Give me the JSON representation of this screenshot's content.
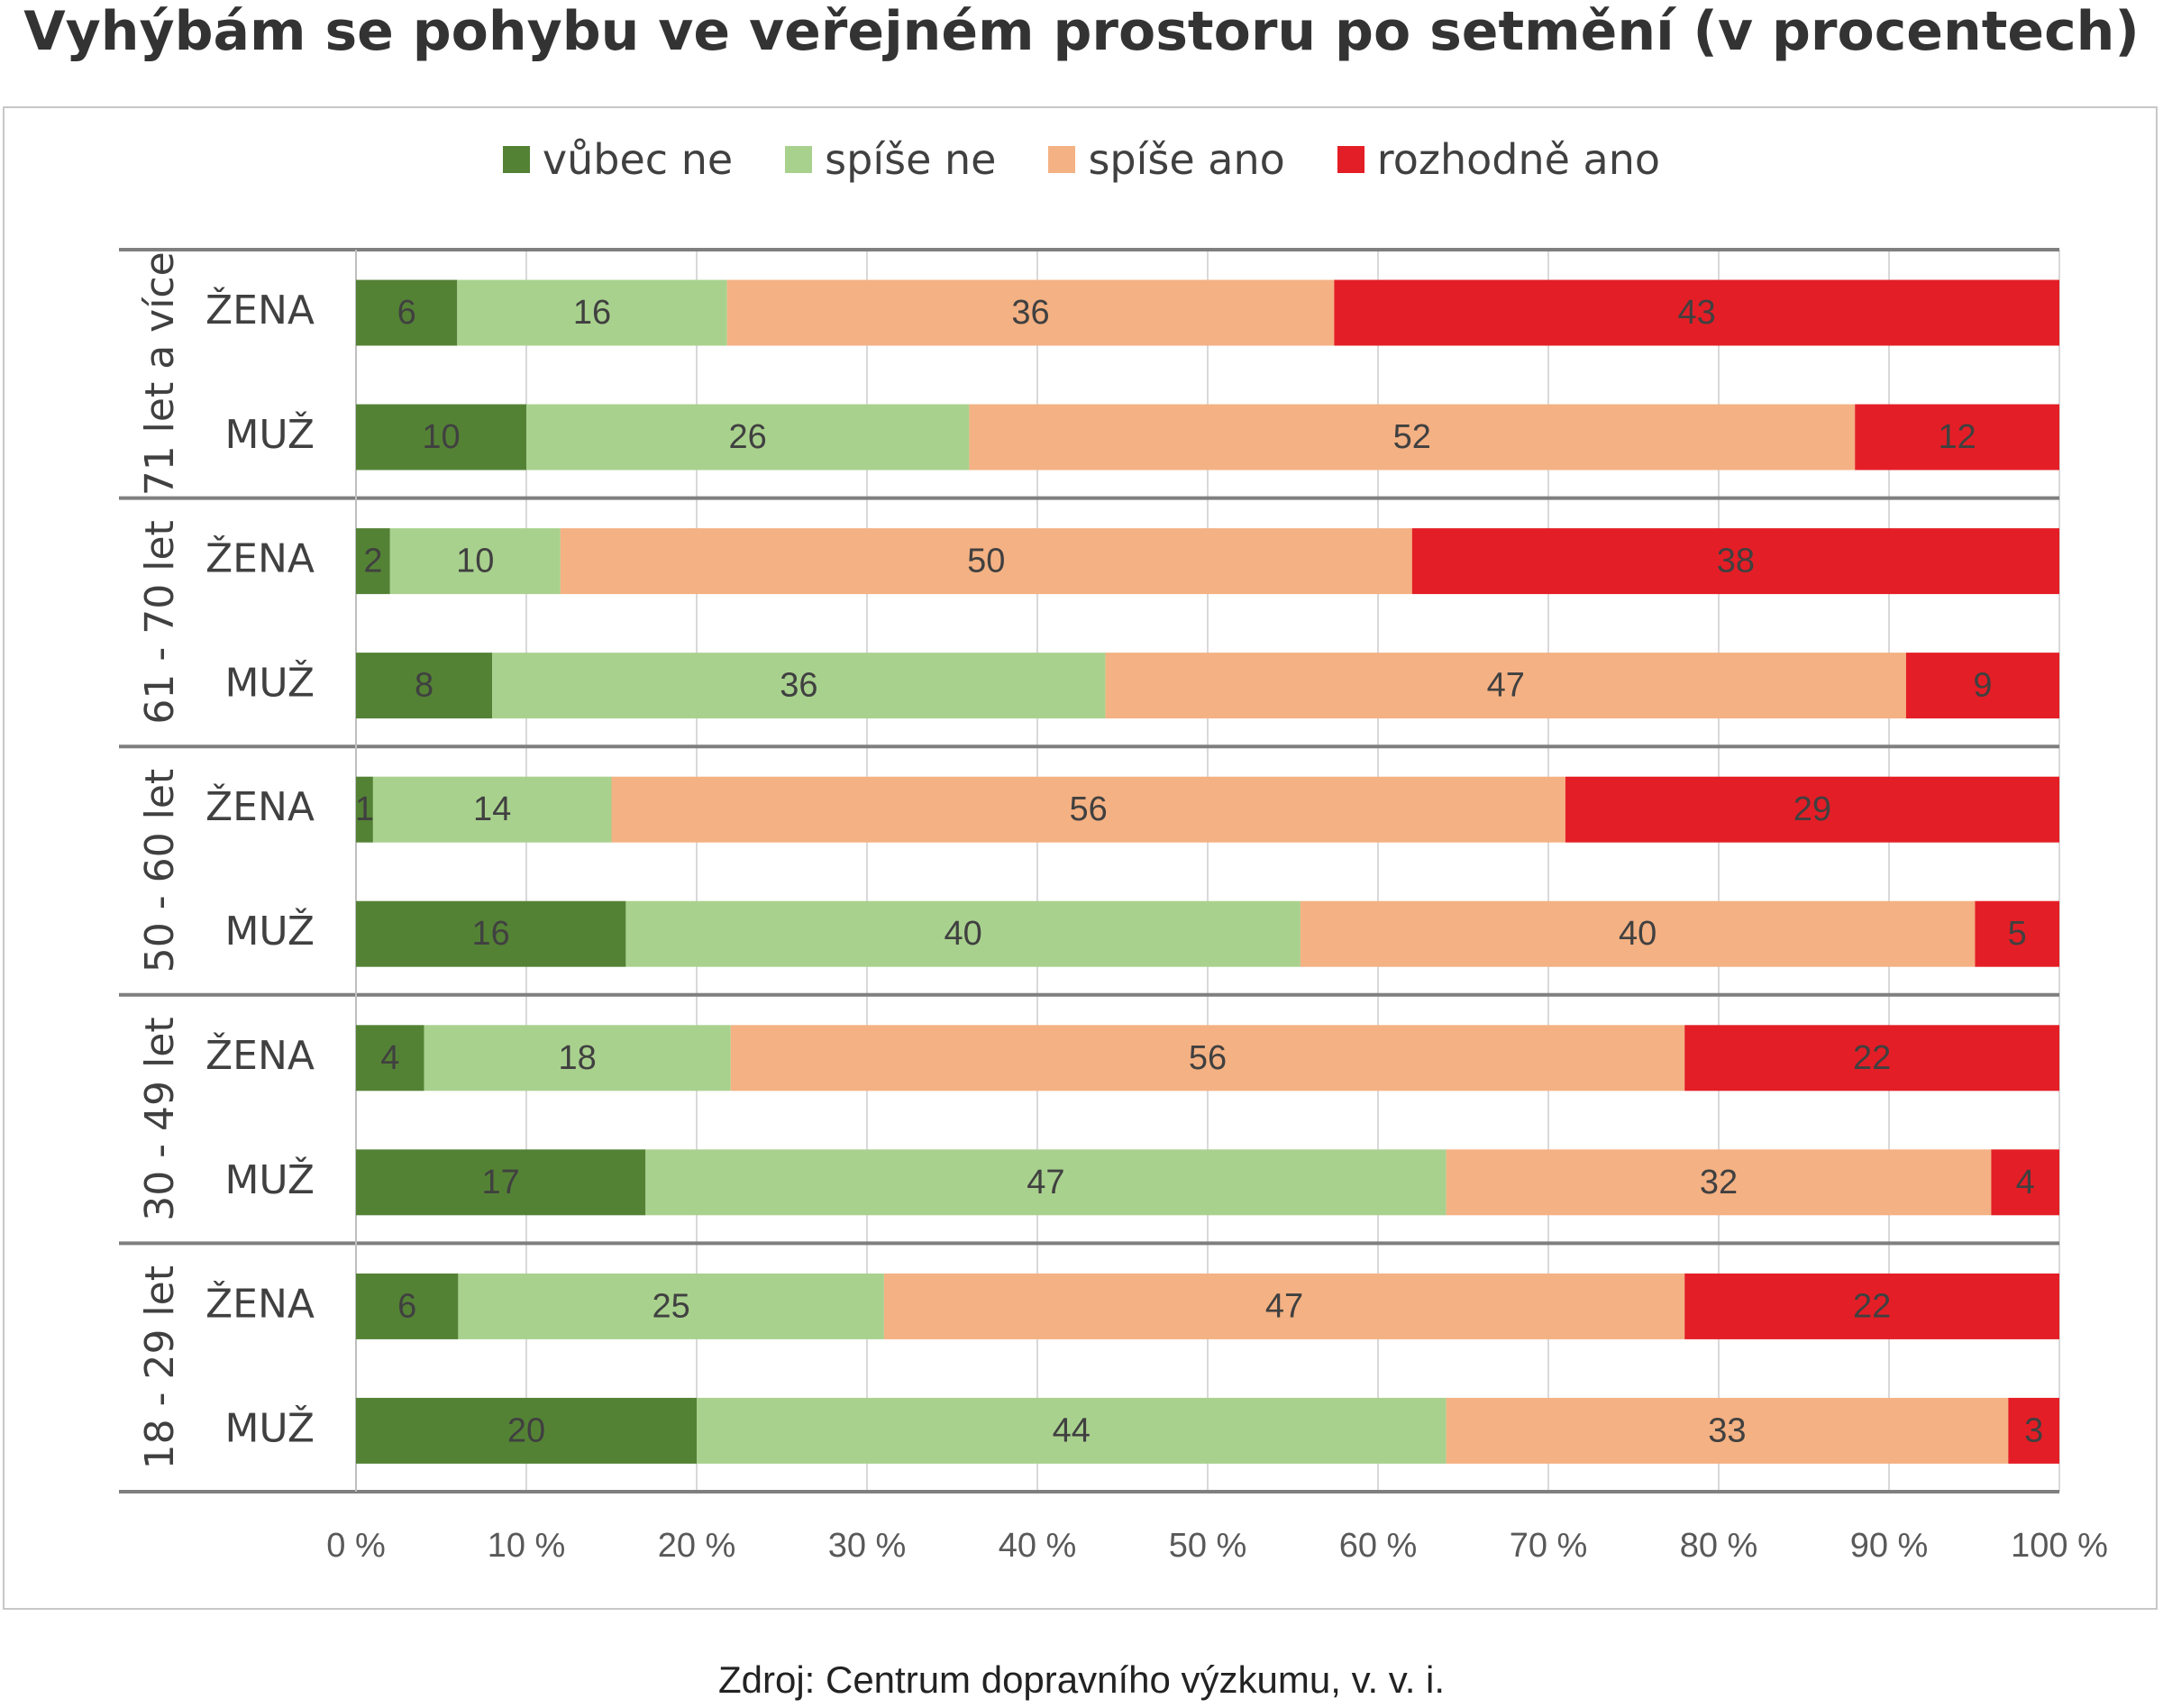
{
  "title": "Vyhýbám se pohybu ve veřejném prostoru po setmění (v procentech)",
  "source": "Zdroj: Centrum dopravního výzkumu, v. v. i.",
  "chart_data": {
    "type": "bar",
    "orientation": "horizontal",
    "stacked": "percent",
    "title": "Vyhýbám se pohybu ve veřejném prostoru po setmění (v procentech)",
    "legend_position": "top",
    "grid": true,
    "xlim": [
      0,
      100
    ],
    "x_ticks": [
      "0 %",
      "10 %",
      "20 %",
      "30 %",
      "40 %",
      "50 %",
      "60 %",
      "70 %",
      "80 %",
      "90 %",
      "100 %"
    ],
    "series": [
      {
        "name": "vůbec ne",
        "color": "#548235"
      },
      {
        "name": "spíše ne",
        "color": "#a9d18e"
      },
      {
        "name": "spíše ano",
        "color": "#f4b183"
      },
      {
        "name": "rozhodně ano",
        "color": "#e41e26"
      }
    ],
    "groups": [
      {
        "label": "71 let a více",
        "rows": [
          {
            "label": "ŽENA",
            "values": [
              6,
              16,
              36,
              43
            ]
          },
          {
            "label": "MUŽ",
            "values": [
              10,
              26,
              52,
              12
            ]
          }
        ]
      },
      {
        "label": "61 - 70 let",
        "rows": [
          {
            "label": "ŽENA",
            "values": [
              2,
              10,
              50,
              38
            ]
          },
          {
            "label": "MUŽ",
            "values": [
              8,
              36,
              47,
              9
            ]
          }
        ]
      },
      {
        "label": "50 - 60 let",
        "rows": [
          {
            "label": "ŽENA",
            "values": [
              1,
              14,
              56,
              29
            ]
          },
          {
            "label": "MUŽ",
            "values": [
              16,
              40,
              40,
              5
            ]
          }
        ]
      },
      {
        "label": "30 - 49 let",
        "rows": [
          {
            "label": "ŽENA",
            "values": [
              4,
              18,
              56,
              22
            ]
          },
          {
            "label": "MUŽ",
            "values": [
              17,
              47,
              32,
              4
            ]
          }
        ]
      },
      {
        "label": "18 - 29 let",
        "rows": [
          {
            "label": "ŽENA",
            "values": [
              6,
              25,
              47,
              22
            ]
          },
          {
            "label": "MUŽ",
            "values": [
              20,
              44,
              33,
              3
            ]
          }
        ]
      }
    ]
  }
}
